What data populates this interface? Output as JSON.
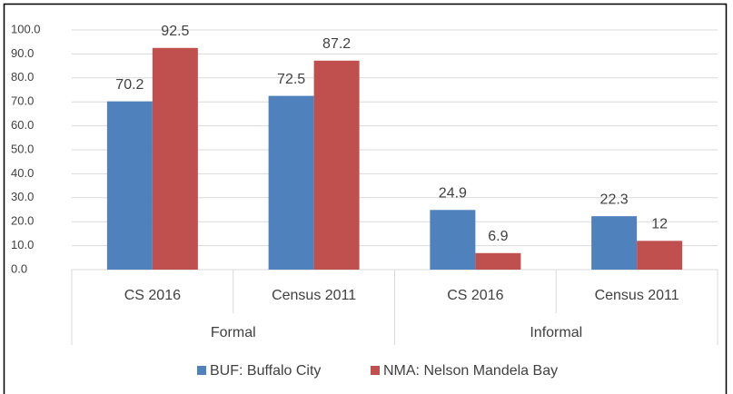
{
  "chart_data": {
    "type": "bar",
    "categories": [
      "CS 2016",
      "Census 2011",
      "CS 2016",
      "Census 2011"
    ],
    "groups": [
      "Formal",
      "Informal"
    ],
    "series": [
      {
        "name": "BUF: Buffalo City",
        "color": "#4f81bd",
        "values": [
          70.2,
          72.5,
          24.9,
          22.3
        ]
      },
      {
        "name": "NMA: Nelson Mandela Bay",
        "color": "#c0504d",
        "values": [
          92.5,
          87.2,
          6.9,
          12
        ]
      }
    ],
    "ylim": [
      0,
      100
    ],
    "yticks": [
      {
        "value": 0,
        "label": "0.0"
      },
      {
        "value": 10,
        "label": "10.0"
      },
      {
        "value": 20,
        "label": "20.0"
      },
      {
        "value": 30,
        "label": "30.0"
      },
      {
        "value": 40,
        "label": "40.0"
      },
      {
        "value": 50,
        "label": "50.0"
      },
      {
        "value": 60,
        "label": "60.0"
      },
      {
        "value": 70,
        "label": "70.0"
      },
      {
        "value": 80,
        "label": "80.0"
      },
      {
        "value": 90,
        "label": "90.0"
      },
      {
        "value": 100,
        "label": "100.0"
      }
    ],
    "grid": true,
    "legend": "bottom"
  }
}
